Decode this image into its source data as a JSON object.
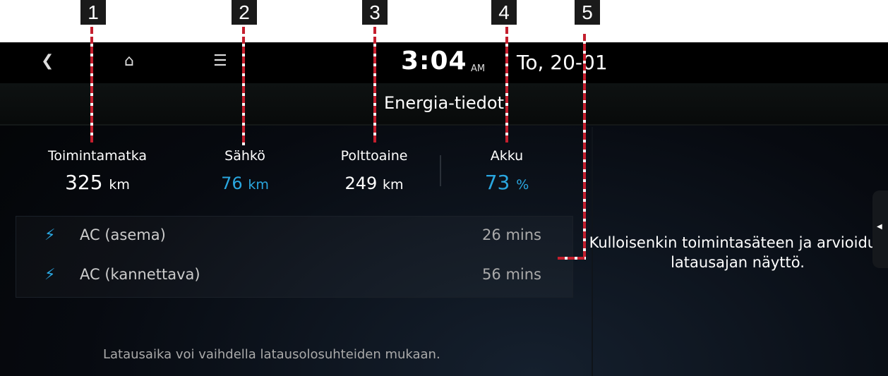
{
  "status_bar": {
    "back_icon": "chevron-left",
    "home_icon": "home",
    "menu_icon": "hamburger",
    "time": "3:04",
    "ampm": "AM",
    "date": "To, 20-01"
  },
  "title": "Energia-tiedot",
  "summary": [
    {
      "label": "Toimintamatka",
      "value": "325",
      "unit": "km"
    },
    {
      "label": "Sähkö",
      "value": "76",
      "unit": "km"
    },
    {
      "label": "Polttoaine",
      "value": "249",
      "unit": "km"
    },
    {
      "label": "Akku",
      "value": "73",
      "unit": "%"
    }
  ],
  "charging": [
    {
      "icon": "lightning",
      "name": "AC (asema)",
      "time": "26 mins"
    },
    {
      "icon": "lightning",
      "name": "AC (kannettava)",
      "time": "56 mins"
    }
  ],
  "note": "Latausaika voi vaihdella latausolosuhteiden mukaan.",
  "description": "Kulloisenkin toimintasäteen ja arvioidun latausajan näyttö.",
  "callouts": [
    "1",
    "2",
    "3",
    "4",
    "5"
  ],
  "colors": {
    "accent": "#2aa7e0",
    "callout_line": "#c41f2e"
  }
}
